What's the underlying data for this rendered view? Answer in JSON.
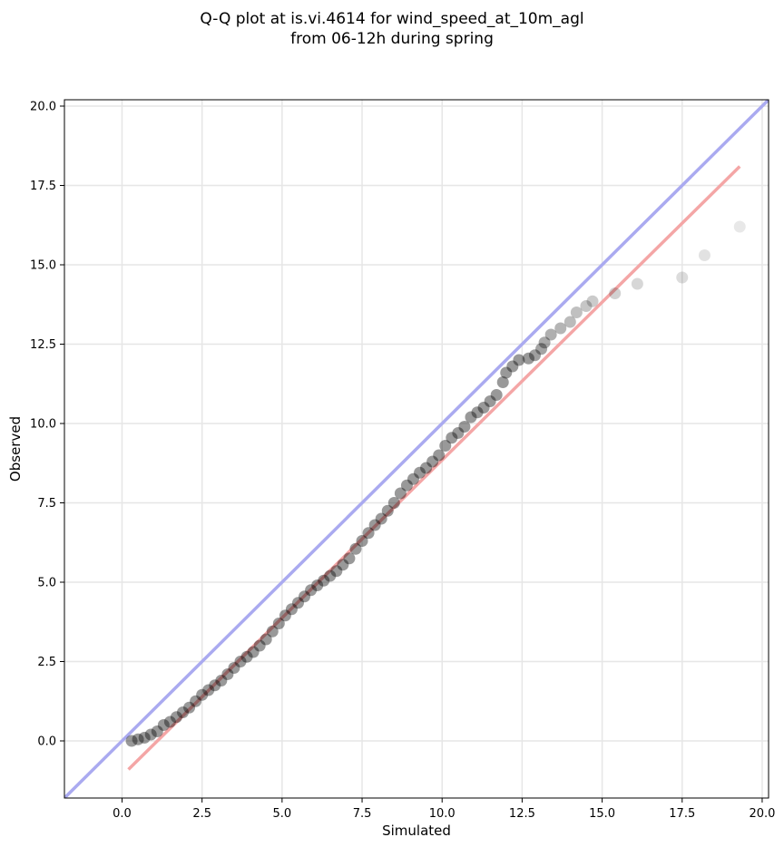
{
  "chart_data": {
    "type": "scatter",
    "title_line1": "Q-Q plot at is.vi.4614 for wind_speed_at_10m_agl",
    "title_line2": "from 06-12h during spring",
    "xlabel": "Simulated",
    "ylabel": "Observed",
    "xlim": [
      -1.8,
      20.2
    ],
    "ylim": [
      -1.8,
      20.2
    ],
    "xticks": [
      "0.0",
      "2.5",
      "5.0",
      "7.5",
      "10.0",
      "12.5",
      "15.0",
      "17.5",
      "20.0"
    ],
    "yticks": [
      "0.0",
      "2.5",
      "5.0",
      "7.5",
      "10.0",
      "12.5",
      "15.0",
      "17.5",
      "20.0"
    ],
    "grid": true,
    "reference_line": {
      "description": "1:1",
      "color": "#aaaaf0",
      "from": [
        -1.8,
        -1.8
      ],
      "to": [
        20.2,
        20.2
      ]
    },
    "fit_line": {
      "color": "#f4a6a6",
      "from": [
        0.2,
        -0.9
      ],
      "to": [
        19.3,
        18.1
      ]
    },
    "marker_color": "#000000",
    "points": [
      [
        0.3,
        0.0
      ],
      [
        0.5,
        0.05
      ],
      [
        0.7,
        0.1
      ],
      [
        0.9,
        0.2
      ],
      [
        1.1,
        0.3
      ],
      [
        1.3,
        0.5
      ],
      [
        1.5,
        0.6
      ],
      [
        1.7,
        0.75
      ],
      [
        1.9,
        0.9
      ],
      [
        2.1,
        1.05
      ],
      [
        2.3,
        1.25
      ],
      [
        2.5,
        1.45
      ],
      [
        2.7,
        1.6
      ],
      [
        2.9,
        1.75
      ],
      [
        3.1,
        1.9
      ],
      [
        3.3,
        2.1
      ],
      [
        3.5,
        2.3
      ],
      [
        3.7,
        2.5
      ],
      [
        3.9,
        2.65
      ],
      [
        4.1,
        2.8
      ],
      [
        4.3,
        3.0
      ],
      [
        4.5,
        3.2
      ],
      [
        4.7,
        3.45
      ],
      [
        4.9,
        3.7
      ],
      [
        5.1,
        3.95
      ],
      [
        5.3,
        4.15
      ],
      [
        5.5,
        4.35
      ],
      [
        5.7,
        4.55
      ],
      [
        5.9,
        4.75
      ],
      [
        6.1,
        4.9
      ],
      [
        6.3,
        5.05
      ],
      [
        6.5,
        5.2
      ],
      [
        6.7,
        5.35
      ],
      [
        6.9,
        5.55
      ],
      [
        7.1,
        5.75
      ],
      [
        7.3,
        6.05
      ],
      [
        7.5,
        6.3
      ],
      [
        7.7,
        6.55
      ],
      [
        7.9,
        6.8
      ],
      [
        8.1,
        7.0
      ],
      [
        8.3,
        7.25
      ],
      [
        8.5,
        7.5
      ],
      [
        8.7,
        7.8
      ],
      [
        8.9,
        8.05
      ],
      [
        9.1,
        8.25
      ],
      [
        9.3,
        8.45
      ],
      [
        9.5,
        8.6
      ],
      [
        9.7,
        8.8
      ],
      [
        9.9,
        9.0
      ],
      [
        10.1,
        9.3
      ],
      [
        10.3,
        9.55
      ],
      [
        10.5,
        9.7
      ],
      [
        10.7,
        9.9
      ],
      [
        10.9,
        10.2
      ],
      [
        11.1,
        10.35
      ],
      [
        11.3,
        10.5
      ],
      [
        11.5,
        10.7
      ],
      [
        11.7,
        10.9
      ],
      [
        11.9,
        11.3
      ],
      [
        12.0,
        11.6
      ],
      [
        12.2,
        11.8
      ],
      [
        12.4,
        12.0
      ],
      [
        12.7,
        12.05
      ],
      [
        12.9,
        12.15
      ],
      [
        13.1,
        12.35
      ],
      [
        13.2,
        12.55
      ],
      [
        13.4,
        12.8
      ],
      [
        13.7,
        13.0
      ],
      [
        14.0,
        13.2
      ],
      [
        14.2,
        13.5
      ],
      [
        14.5,
        13.7
      ],
      [
        14.7,
        13.85
      ],
      [
        15.4,
        14.1
      ],
      [
        16.1,
        14.4
      ],
      [
        17.5,
        14.6
      ],
      [
        18.2,
        15.3
      ],
      [
        19.3,
        16.2
      ]
    ]
  }
}
